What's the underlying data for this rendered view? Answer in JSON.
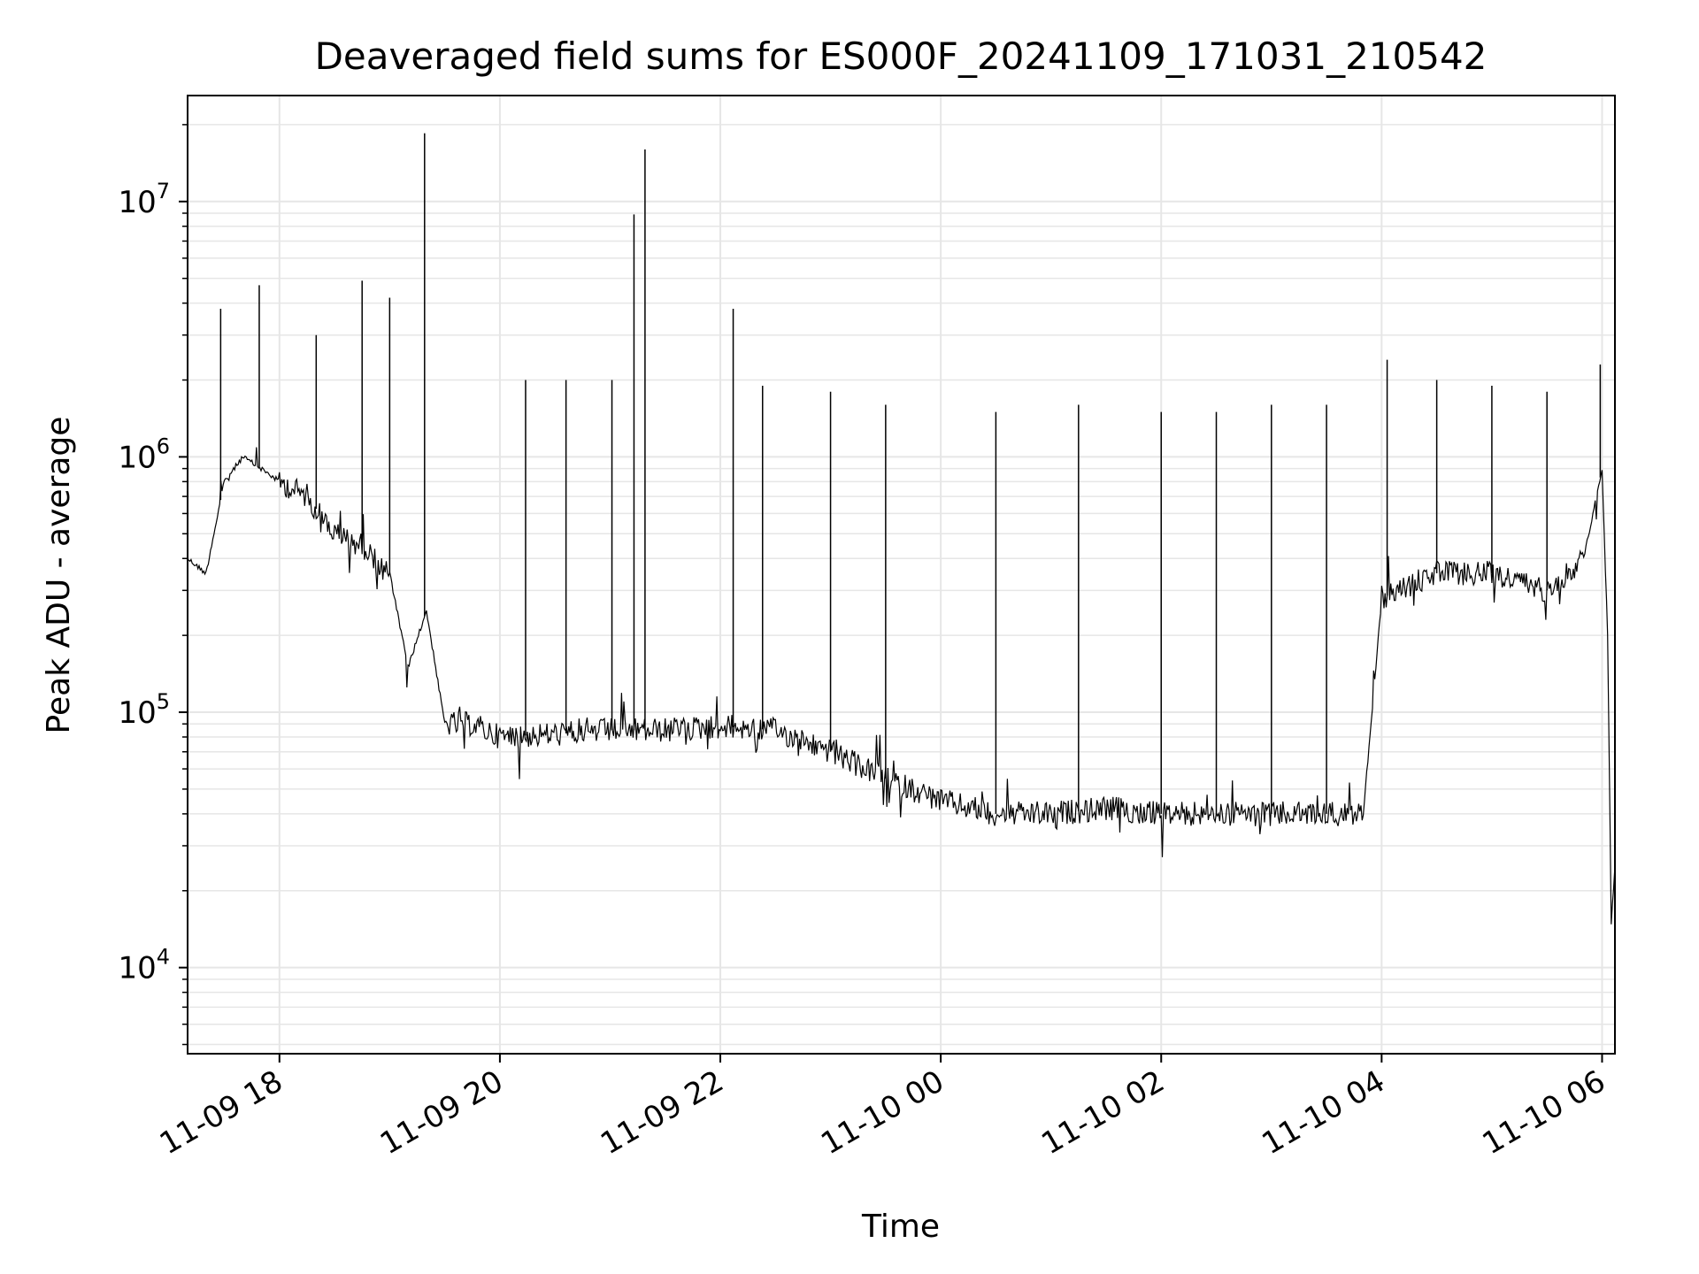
{
  "chart_data": {
    "type": "line",
    "title": "Deaveraged field sums for ES000F_20241109_171031_210542",
    "xlabel": "Time",
    "ylabel": "Peak ADU - average",
    "y_scale": "log",
    "ylim": [
      4600,
      26000000
    ],
    "xlim": [
      "2024-11-09 17:10",
      "2024-11-10 06:07"
    ],
    "grid": true,
    "line_color": "#000000",
    "grid_color": "#e6e6e6",
    "x_ticks": [
      "2024-11-09 18:00",
      "2024-11-09 20:00",
      "2024-11-09 22:00",
      "2024-11-10 00:00",
      "2024-11-10 02:00",
      "2024-11-10 04:00",
      "2024-11-10 06:00"
    ],
    "x_tick_labels": [
      "11-09 18",
      "11-09 20",
      "11-09 22",
      "11-10 00",
      "11-10 02",
      "11-10 04",
      "11-10 06"
    ],
    "y_ticks": [
      10000,
      100000,
      1000000,
      10000000
    ],
    "y_tick_labels": [
      {
        "base": "10",
        "exp": "4"
      },
      {
        "base": "10",
        "exp": "5"
      },
      {
        "base": "10",
        "exp": "6"
      },
      {
        "base": "10",
        "exp": "7"
      }
    ],
    "series": [
      {
        "x": [
          "2024-11-09 17:10",
          "2024-11-09 17:20",
          "2024-11-09 17:30",
          "2024-11-09 17:40",
          "2024-11-09 17:50",
          "2024-11-09 18:00",
          "2024-11-09 18:15",
          "2024-11-09 18:30",
          "2024-11-09 18:45",
          "2024-11-09 19:00",
          "2024-11-09 19:10",
          "2024-11-09 19:20",
          "2024-11-09 19:30",
          "2024-11-09 19:45",
          "2024-11-09 20:00",
          "2024-11-09 20:30",
          "2024-11-09 21:00",
          "2024-11-09 21:30",
          "2024-11-09 22:00",
          "2024-11-09 22:30",
          "2024-11-09 23:00",
          "2024-11-09 23:30",
          "2024-11-10 00:00",
          "2024-11-10 00:30",
          "2024-11-10 01:00",
          "2024-11-10 01:30",
          "2024-11-10 02:00",
          "2024-11-10 02:30",
          "2024-11-10 03:00",
          "2024-11-10 03:30",
          "2024-11-10 03:50",
          "2024-11-10 04:00",
          "2024-11-10 04:30",
          "2024-11-10 05:00",
          "2024-11-10 05:30",
          "2024-11-10 05:50",
          "2024-11-10 06:00",
          "2024-11-10 06:03",
          "2024-11-10 06:05",
          "2024-11-10 06:07"
        ],
        "y": [
          400000,
          350000,
          800000,
          1000000,
          900000,
          800000,
          700000,
          500000,
          450000,
          350000,
          150000,
          250000,
          90000,
          90000,
          80000,
          82000,
          85000,
          85000,
          88000,
          85000,
          70000,
          55000,
          45000,
          40000,
          40000,
          42000,
          40000,
          40000,
          40000,
          40000,
          40000,
          280000,
          350000,
          350000,
          300000,
          400000,
          900000,
          200000,
          15000,
          25000
        ]
      }
    ],
    "spikes": [
      {
        "x": "2024-11-09 17:28",
        "y": 3800000
      },
      {
        "x": "2024-11-09 17:49",
        "y": 4700000
      },
      {
        "x": "2024-11-09 18:20",
        "y": 3000000
      },
      {
        "x": "2024-11-09 18:45",
        "y": 4900000
      },
      {
        "x": "2024-11-09 19:00",
        "y": 4200000
      },
      {
        "x": "2024-11-09 19:19",
        "y": 18500000
      },
      {
        "x": "2024-11-09 20:14",
        "y": 2000000
      },
      {
        "x": "2024-11-09 20:36",
        "y": 2000000
      },
      {
        "x": "2024-11-09 21:01",
        "y": 2000000
      },
      {
        "x": "2024-11-09 21:13",
        "y": 8900000
      },
      {
        "x": "2024-11-09 21:19",
        "y": 16000000
      },
      {
        "x": "2024-11-09 22:07",
        "y": 3800000
      },
      {
        "x": "2024-11-09 22:23",
        "y": 1900000
      },
      {
        "x": "2024-11-09 23:00",
        "y": 1800000
      },
      {
        "x": "2024-11-09 23:30",
        "y": 1600000
      },
      {
        "x": "2024-11-10 00:30",
        "y": 1500000
      },
      {
        "x": "2024-11-10 01:15",
        "y": 1600000
      },
      {
        "x": "2024-11-10 02:00",
        "y": 1500000
      },
      {
        "x": "2024-11-10 02:30",
        "y": 1500000
      },
      {
        "x": "2024-11-10 03:00",
        "y": 1600000
      },
      {
        "x": "2024-11-10 03:30",
        "y": 1600000
      },
      {
        "x": "2024-11-10 04:03",
        "y": 2400000
      },
      {
        "x": "2024-11-10 04:30",
        "y": 2000000
      },
      {
        "x": "2024-11-10 05:00",
        "y": 1900000
      },
      {
        "x": "2024-11-10 05:30",
        "y": 1800000
      },
      {
        "x": "2024-11-10 05:59",
        "y": 2300000
      }
    ]
  }
}
